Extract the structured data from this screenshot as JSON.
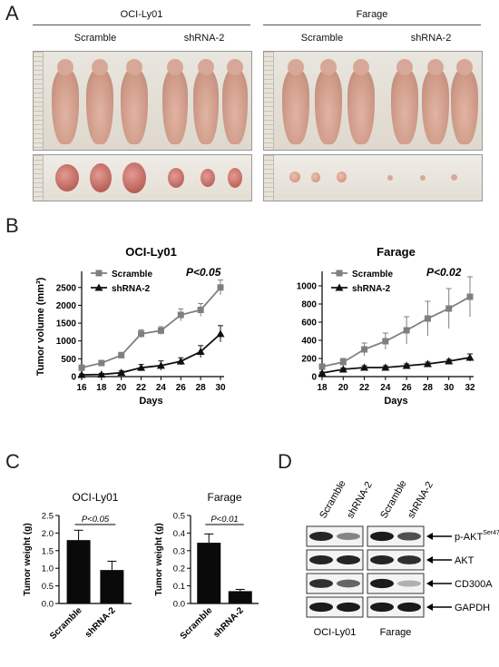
{
  "panels": {
    "a": "A",
    "b": "B",
    "c": "C",
    "d": "D"
  },
  "panel_a": {
    "groups": [
      {
        "title": "OCI-Ly01",
        "conditions": [
          "Scramble",
          "shRNA-2"
        ]
      },
      {
        "title": "Farage",
        "conditions": [
          "Scramble",
          "shRNA-2"
        ]
      }
    ]
  },
  "colors": {
    "scramble": "#7f7f7f",
    "shrna": "#111111",
    "bar": "#0a0a0a"
  },
  "chart_data": [
    {
      "type": "line",
      "title": "OCI-Ly01",
      "xlabel": "Days",
      "ylabel": "Tumor volume (mm³)",
      "annotation": "P<0.05",
      "x": [
        16,
        18,
        20,
        22,
        24,
        26,
        28,
        30
      ],
      "xlim": [
        16,
        30
      ],
      "ylim": [
        0,
        2800
      ],
      "yticks": [
        0,
        500,
        1000,
        1500,
        2000,
        2500
      ],
      "series": [
        {
          "name": "Scramble",
          "marker": "square",
          "values": [
            250,
            380,
            600,
            1200,
            1290,
            1730,
            1870,
            2500
          ],
          "errors": [
            50,
            60,
            80,
            110,
            110,
            170,
            180,
            210
          ]
        },
        {
          "name": "shRNA-2",
          "marker": "triangle",
          "values": [
            50,
            60,
            110,
            250,
            310,
            430,
            700,
            1200
          ],
          "errors": [
            20,
            30,
            50,
            90,
            130,
            100,
            170,
            230
          ]
        }
      ]
    },
    {
      "type": "line",
      "title": "Farage",
      "xlabel": "Days",
      "ylabel": "",
      "annotation": "P<0.02",
      "x": [
        18,
        20,
        22,
        24,
        26,
        28,
        30,
        32
      ],
      "xlim": [
        18,
        32
      ],
      "ylim": [
        0,
        1100
      ],
      "yticks": [
        0,
        200,
        400,
        600,
        800,
        1000
      ],
      "series": [
        {
          "name": "Scramble",
          "marker": "square",
          "values": [
            110,
            160,
            300,
            390,
            510,
            640,
            750,
            880
          ],
          "errors": [
            30,
            40,
            70,
            90,
            150,
            190,
            220,
            220
          ]
        },
        {
          "name": "shRNA-2",
          "marker": "triangle",
          "values": [
            40,
            80,
            100,
            100,
            120,
            140,
            170,
            210
          ],
          "errors": [
            10,
            15,
            20,
            20,
            20,
            20,
            20,
            40
          ]
        }
      ]
    },
    {
      "type": "bar",
      "title": "OCI-Ly01",
      "ylabel": "Tumor weight (g)",
      "annotation": "P<0.05",
      "categories": [
        "Scramble",
        "shRNA-2"
      ],
      "values": [
        1.8,
        0.95
      ],
      "errors": [
        0.28,
        0.25
      ],
      "ylim": [
        0,
        2.5
      ],
      "yticks": [
        0.0,
        0.5,
        1.0,
        1.5,
        2.0,
        2.5
      ]
    },
    {
      "type": "bar",
      "title": "Farage",
      "ylabel": "Tumor weight (g)",
      "annotation": "P<0.01",
      "categories": [
        "Scramble",
        "shRNA-2"
      ],
      "values": [
        0.345,
        0.07
      ],
      "errors": [
        0.05,
        0.01
      ],
      "ylim": [
        0,
        0.5
      ],
      "yticks": [
        0.0,
        0.1,
        0.2,
        0.3,
        0.4,
        0.5
      ]
    }
  ],
  "panel_d": {
    "lane_labels": [
      "Scramble",
      "shRNA-2",
      "Scramble",
      "shRNA-2"
    ],
    "cell_lines": [
      "OCI-Ly01",
      "Farage"
    ],
    "proteins": [
      {
        "name": "p-AKT",
        "superscript": "Ser473"
      },
      {
        "name": "AKT",
        "superscript": ""
      },
      {
        "name": "CD300A",
        "superscript": ""
      },
      {
        "name": "GAPDH",
        "superscript": ""
      }
    ],
    "band_intensity": [
      [
        0.9,
        0.45,
        0.95,
        0.7
      ],
      [
        0.9,
        0.9,
        0.9,
        0.85
      ],
      [
        0.85,
        0.6,
        0.95,
        0.25
      ],
      [
        0.95,
        0.95,
        0.95,
        0.95
      ]
    ]
  }
}
